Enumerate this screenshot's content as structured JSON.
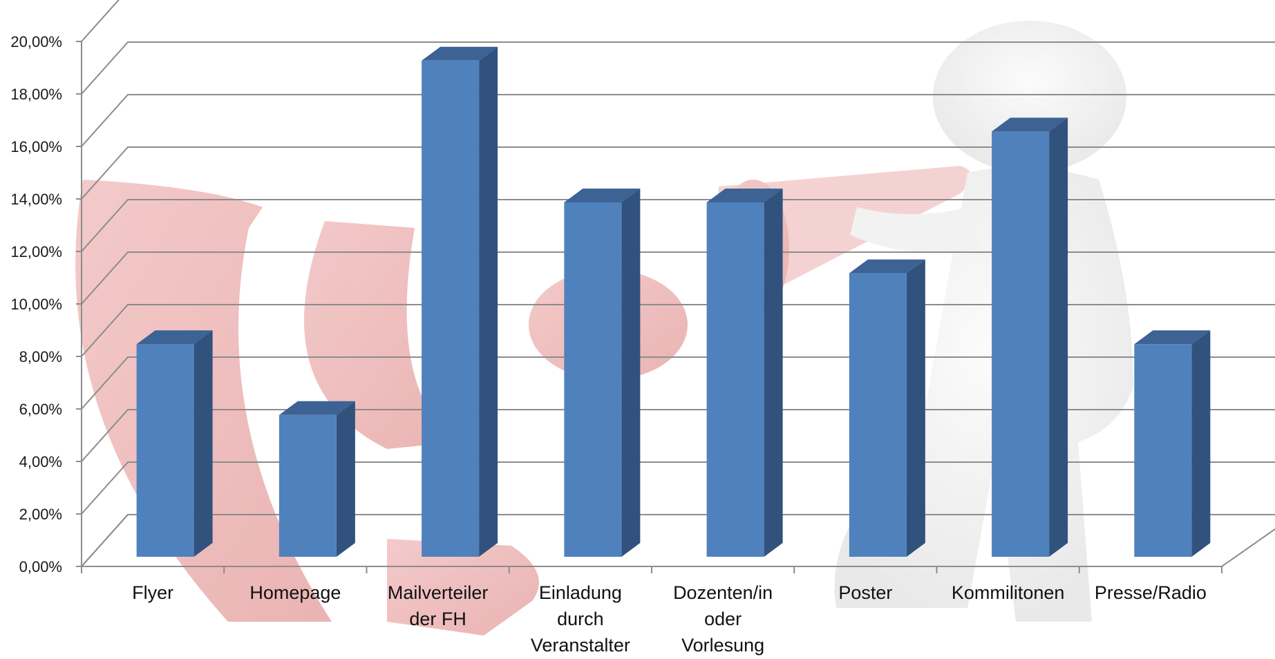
{
  "chart_data": {
    "type": "bar",
    "style": "3d-column",
    "categories": [
      [
        "Flyer"
      ],
      [
        "Homepage"
      ],
      [
        "Mailverteiler",
        "der FH"
      ],
      [
        "Einladung",
        "durch",
        "Veranstalter"
      ],
      [
        "Dozenten/in",
        "oder",
        "Vorlesung"
      ],
      [
        "Poster"
      ],
      [
        "Kommilitonen"
      ],
      [
        "Presse/Radio"
      ]
    ],
    "values": [
      8.1,
      5.4,
      18.9,
      13.5,
      13.5,
      10.8,
      16.2,
      8.1
    ],
    "ylim": [
      0,
      20
    ],
    "yticks": [
      "0,00%",
      "2,00%",
      "4,00%",
      "6,00%",
      "8,00%",
      "10,00%",
      "12,00%",
      "14,00%",
      "16,00%",
      "18,00%",
      "20,00%"
    ],
    "grid": true,
    "legend": "none",
    "title": "",
    "xlabel": "",
    "ylabel": "",
    "colors": {
      "bar_front": "#4f81bd",
      "bar_side": "#31527d",
      "bar_top": "#3d6294",
      "gridline": "#8c8c8c",
      "background_art_red": "#e8a4a4",
      "background_art_gray": "#e8e8e8"
    },
    "background_art": "megaphone-figure-illustration"
  }
}
